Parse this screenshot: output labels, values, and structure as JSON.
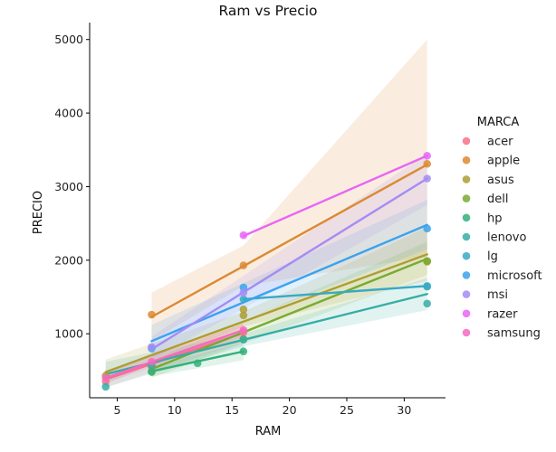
{
  "chart_data": {
    "type": "scatter",
    "title": "Ram vs Precio",
    "xlabel": "RAM",
    "ylabel": "PRECIO",
    "xlim": [
      2.6,
      33.6
    ],
    "ylim": [
      130,
      5230
    ],
    "xticks": [
      5,
      10,
      15,
      20,
      25,
      30
    ],
    "yticks": [
      1000,
      2000,
      3000,
      4000,
      5000
    ],
    "grid": false,
    "legend_title": "MARCA",
    "legend_position": "right",
    "series": [
      {
        "name": "acer",
        "color": "#f77189",
        "points": [
          [
            4,
            350
          ],
          [
            8,
            560
          ],
          [
            16,
            1020
          ]
        ],
        "fit": [
          [
            4,
            380
          ],
          [
            16,
            1010
          ]
        ],
        "band": [
          [
            4,
            270,
            470
          ],
          [
            16,
            880,
            1140
          ]
        ]
      },
      {
        "name": "apple",
        "color": "#dc8932",
        "points": [
          [
            8,
            1260
          ],
          [
            16,
            1930
          ],
          [
            32,
            3310
          ]
        ],
        "fit": [
          [
            8,
            1230
          ],
          [
            32,
            3300
          ]
        ],
        "band": [
          [
            8,
            900,
            1560
          ],
          [
            16,
            1650,
            2200
          ],
          [
            32,
            2050,
            5000
          ]
        ]
      },
      {
        "name": "asus",
        "color": "#ae9d31",
        "points": [
          [
            4,
            430
          ],
          [
            8,
            560
          ],
          [
            16,
            1250
          ],
          [
            16,
            1330
          ],
          [
            32,
            1980
          ]
        ],
        "fit": [
          [
            4,
            480
          ],
          [
            32,
            2080
          ]
        ],
        "band": [
          [
            4,
            320,
            650
          ],
          [
            16,
            1100,
            1300
          ],
          [
            32,
            1720,
            2450
          ]
        ]
      },
      {
        "name": "dell",
        "color": "#77ab31",
        "points": [
          [
            8,
            490
          ],
          [
            16,
            930
          ],
          [
            32,
            1990
          ]
        ],
        "fit": [
          [
            8,
            520
          ],
          [
            32,
            2020
          ]
        ],
        "band": [
          [
            8,
            400,
            640
          ],
          [
            32,
            1800,
            2250
          ]
        ]
      },
      {
        "name": "hp",
        "color": "#33b07a",
        "points": [
          [
            8,
            480
          ],
          [
            12,
            600
          ],
          [
            16,
            760
          ]
        ],
        "fit": [
          [
            8,
            490
          ],
          [
            16,
            760
          ]
        ],
        "band": [
          [
            8,
            420,
            560
          ],
          [
            16,
            640,
            880
          ]
        ]
      },
      {
        "name": "lenovo",
        "color": "#36ada4",
        "points": [
          [
            4,
            280
          ],
          [
            8,
            570
          ],
          [
            16,
            920
          ],
          [
            32,
            1410
          ],
          [
            32,
            1640
          ]
        ],
        "fit": [
          [
            4,
            450
          ],
          [
            32,
            1540
          ]
        ],
        "band": [
          [
            4,
            270,
            620
          ],
          [
            16,
            830,
            1000
          ],
          [
            32,
            1320,
            1760
          ]
        ]
      },
      {
        "name": "lg",
        "color": "#38a9c5",
        "points": [
          [
            16,
            1470
          ],
          [
            32,
            1650
          ]
        ],
        "fit": [
          [
            16,
            1470
          ],
          [
            32,
            1650
          ]
        ],
        "band": [
          [
            16,
            1470,
            1470
          ],
          [
            32,
            1650,
            1650
          ]
        ]
      },
      {
        "name": "microsoft",
        "color": "#3ba3ec",
        "points": [
          [
            8,
            800
          ],
          [
            16,
            1630
          ],
          [
            32,
            2430
          ]
        ],
        "fit": [
          [
            8,
            900
          ],
          [
            32,
            2480
          ]
        ],
        "band": [
          [
            8,
            700,
            1120
          ],
          [
            32,
            2150,
            2820
          ]
        ]
      },
      {
        "name": "msi",
        "color": "#a48cf4",
        "points": [
          [
            8,
            820
          ],
          [
            16,
            1560
          ],
          [
            32,
            3110
          ]
        ],
        "fit": [
          [
            8,
            790
          ],
          [
            32,
            3110
          ]
        ],
        "band": [
          [
            8,
            640,
            960
          ],
          [
            32,
            2750,
            3450
          ]
        ]
      },
      {
        "name": "razer",
        "color": "#e866f4",
        "points": [
          [
            16,
            2340
          ],
          [
            32,
            3420
          ]
        ],
        "fit": [
          [
            16,
            2330
          ],
          [
            32,
            3420
          ]
        ],
        "band": [
          [
            16,
            2330,
            2330
          ],
          [
            32,
            3420,
            3420
          ]
        ]
      },
      {
        "name": "samsung",
        "color": "#f668c2",
        "points": [
          [
            4,
            400
          ],
          [
            8,
            620
          ],
          [
            16,
            1050
          ]
        ],
        "fit": [
          [
            4,
            400
          ],
          [
            16,
            1050
          ]
        ],
        "band": [
          [
            4,
            330,
            480
          ],
          [
            16,
            960,
            1140
          ]
        ]
      }
    ]
  }
}
